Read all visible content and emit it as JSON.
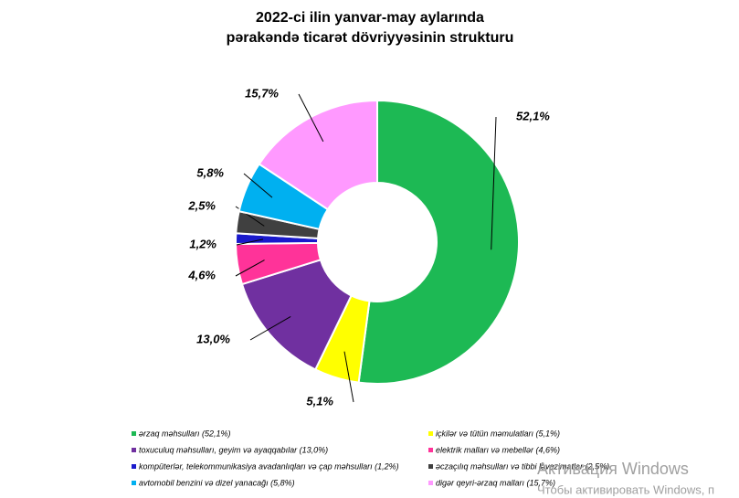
{
  "chart_data": {
    "type": "donut",
    "title": [
      "2022-ci ilin yanvar-may aylarında",
      "pərakəndə ticarət dövriyyəsinin strukturu"
    ],
    "categories": [
      "ərzaq məhsulları (52,1%)",
      "içkilər və tütün məmulatları (5,1%)",
      "toxuculuq məhsulları, geyim və ayaqqabılar (13,0%)",
      "elektrik malları və mebellər (4,6%)",
      "kompüterlər, telekommunikasiya avadanlıqları və çap məhsulları (1,2%)",
      "əczaçılıq məhsulları və tibbi ləvazimatlar (2,5%)",
      "avtomobil benzini və dizel yanacağı (5,8%)",
      "digər qeyri-ərzaq malları (15,7%)"
    ],
    "values": [
      52.1,
      5.1,
      13.0,
      4.6,
      1.2,
      2.5,
      5.8,
      15.7
    ],
    "value_labels": [
      "52,1%",
      "5,1%",
      "13,0%",
      "4,6%",
      "1,2%",
      "2,5%",
      "5,8%",
      "15,7%"
    ],
    "colors": [
      "#1db954",
      "#ffff00",
      "#7030a0",
      "#ff3399",
      "#1a1acc",
      "#404040",
      "#00b0f0",
      "#ff99ff"
    ],
    "legend": "bottom"
  },
  "overlay": {
    "title": "Активация Windows",
    "text": "Чтобы активировать Windows, п"
  }
}
